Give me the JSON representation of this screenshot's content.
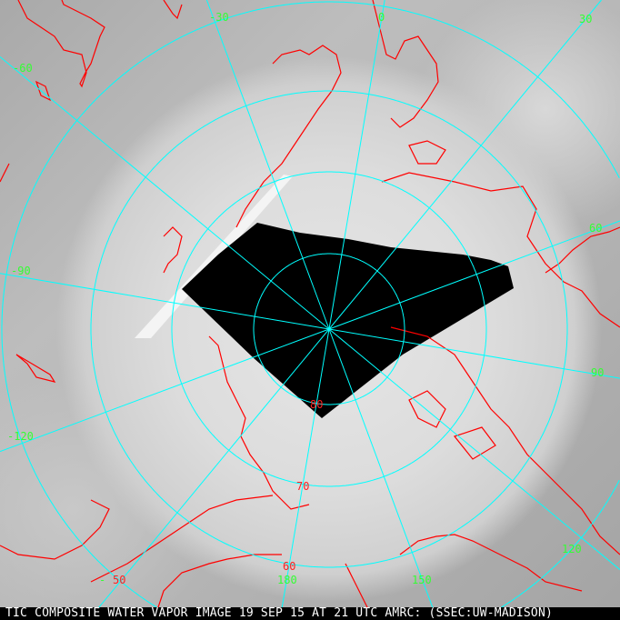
{
  "caption": "TIC COMPOSITE WATER VAPOR IMAGE 19 SEP 15 AT 21 UTC AMRC: (SSEC:UW-MADISON)",
  "colors": {
    "coastline": "#ff0000",
    "graticule": "#00ffff",
    "longitude_label": "#33ff33",
    "latitude_label": "#ff2020",
    "no_data": "#000000"
  },
  "longitude_labels": {
    "m30": "-30",
    "z0": "0",
    "p30": "30",
    "m60": "-60",
    "p60": "60",
    "m90": "-90",
    "p90": "90",
    "m120": "-120",
    "p120": "120",
    "m150": "-",
    "p150": "150",
    "p180": "180"
  },
  "latitude_labels": {
    "l80": "80",
    "l70": "70",
    "l60": "60",
    "l50": "50"
  }
}
